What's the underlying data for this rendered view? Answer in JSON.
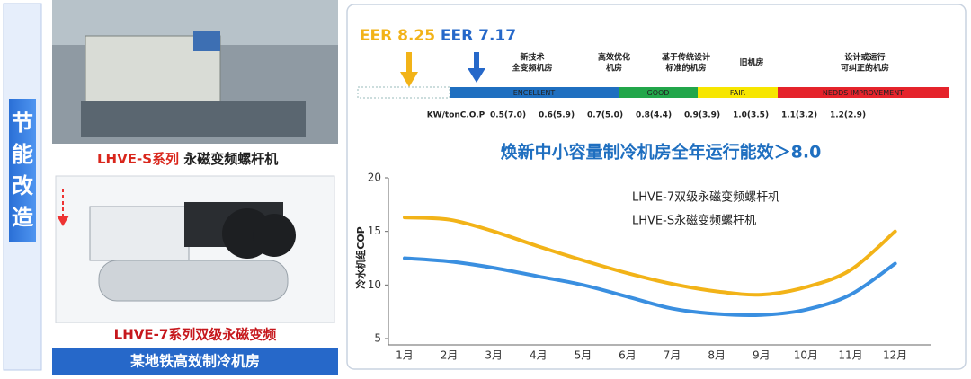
{
  "sidebar": {
    "title": "节能改造"
  },
  "left_panel": {
    "top_caption_model": "LHVE-S系列",
    "top_caption_desc": " 永磁变频螺杆机",
    "bottom_caption": "LHVE-7系列双级永磁变频",
    "banner": "某地铁高效制冷机房"
  },
  "scale": {
    "eer_high": "EER 8.25",
    "eer_low": "EER 7.17",
    "headers": [
      [
        "新技术",
        "全变频机房"
      ],
      [
        "高效优化",
        "机房"
      ],
      [
        "基于传统设计",
        "标准的机房"
      ],
      [
        "旧机房"
      ],
      [
        "设计或运行",
        "可纠正的机房"
      ]
    ],
    "bands": [
      "ENCELLENT",
      "GOOD",
      "FAIR",
      "NEDDS IMPROVEMENT"
    ],
    "metric_label": "KW/tonC.O.P",
    "metrics": [
      "0.5(7.0)",
      "0.6(5.9)",
      "0.7(5.0)",
      "0.8(4.4)",
      "0.9(3.9)",
      "1.0(3.5)",
      "1.1(3.2)",
      "1.2(2.9)"
    ]
  },
  "chart_data": {
    "type": "line",
    "title": "焕新中小容量制冷机房全年运行能效＞8.0",
    "y_label": "冷水机组COP",
    "categories": [
      "1月",
      "2月",
      "3月",
      "4月",
      "5月",
      "6月",
      "7月",
      "8月",
      "9月",
      "10月",
      "11月",
      "12月"
    ],
    "series": [
      {
        "name": "LHVE-7双级永磁变频螺杆机",
        "color": "#f2b318",
        "values": [
          16.3,
          16.1,
          15.0,
          13.6,
          12.3,
          11.1,
          10.1,
          9.4,
          9.1,
          9.8,
          11.4,
          15.0
        ]
      },
      {
        "name": "LHVE-S永磁变频螺杆机",
        "color": "#3a8fe0",
        "values": [
          12.5,
          12.2,
          11.6,
          10.8,
          10.0,
          8.9,
          7.8,
          7.3,
          7.2,
          7.7,
          9.1,
          12.0
        ]
      }
    ],
    "ylim": [
      5,
      20
    ],
    "yticks": [
      5,
      10,
      15,
      20
    ]
  }
}
